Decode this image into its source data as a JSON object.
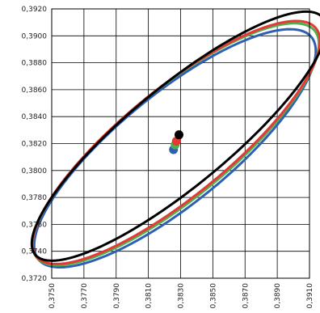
{
  "chart_data": {
    "type": "scatter",
    "title": "",
    "xlabel": "",
    "ylabel": "",
    "xlim": [
      0.375,
      0.391
    ],
    "ylim": [
      0.372,
      0.392
    ],
    "grid": true,
    "x_ticks": [
      0.375,
      0.377,
      0.379,
      0.381,
      0.383,
      0.385,
      0.387,
      0.389,
      0.391
    ],
    "x_tick_labels": [
      "0,3750",
      "0,3770",
      "0,3790",
      "0,3810",
      "0,3830",
      "0,3850",
      "0,3870",
      "0,3890",
      "0,3910"
    ],
    "y_ticks": [
      0.372,
      0.374,
      0.376,
      0.378,
      0.38,
      0.382,
      0.384,
      0.386,
      0.388,
      0.39,
      0.392
    ],
    "y_tick_labels": [
      "0,3720",
      "0,3740",
      "0,3760",
      "0,3780",
      "0,3800",
      "0,3820",
      "0,3840",
      "0,3860",
      "0,3880",
      "0,3900",
      "0,3920"
    ],
    "series": [
      {
        "color": "#2f5fb3",
        "center": [
          0.38256,
          0.38155
        ],
        "ellipse": {
          "cx": 0.38265,
          "cy": 0.38165,
          "a": 0.01185,
          "b": 0.00376,
          "angle_deg": 45.4
        }
      },
      {
        "color": "#4caf50",
        "center": [
          0.38266,
          0.3819
        ],
        "ellipse": {
          "cx": 0.3827,
          "cy": 0.38195,
          "a": 0.01208,
          "b": 0.0037,
          "angle_deg": 45.4
        }
      },
      {
        "color": "#e53935",
        "center": [
          0.38274,
          0.38218
        ],
        "ellipse": {
          "cx": 0.38273,
          "cy": 0.38208,
          "a": 0.01215,
          "b": 0.00365,
          "angle_deg": 45.4
        }
      },
      {
        "color": "#000000",
        "center": [
          0.3829,
          0.38265
        ],
        "ellipse": {
          "cx": 0.3829,
          "cy": 0.38255,
          "a": 0.01255,
          "b": 0.0034,
          "angle_deg": 45.4
        }
      }
    ]
  }
}
